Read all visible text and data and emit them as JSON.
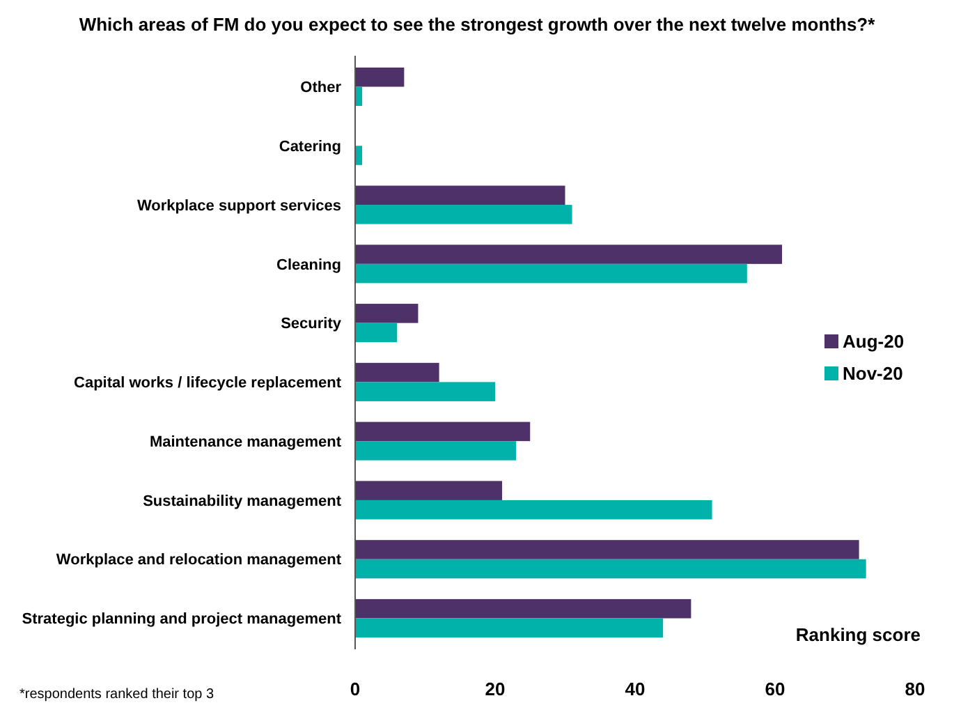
{
  "chart_data": {
    "type": "bar",
    "orientation": "horizontal",
    "title": "Which areas of FM do you expect to see the strongest growth over the next twelve months?*",
    "xlabel": "Ranking score",
    "categories": [
      "Other",
      "Catering",
      "Workplace support services",
      "Cleaning",
      "Security",
      "Capital works / lifecycle replacement",
      "Maintenance management",
      "Sustainability management",
      "Workplace and relocation management",
      "Strategic planning and project management"
    ],
    "series": [
      {
        "name": "Aug-20",
        "color": "#4e3169",
        "values": [
          7,
          0,
          30,
          61,
          9,
          12,
          25,
          21,
          72,
          48
        ]
      },
      {
        "name": "Nov-20",
        "color": "#00b2a9",
        "values": [
          1,
          1,
          31,
          56,
          6,
          20,
          23,
          51,
          73,
          44
        ]
      }
    ],
    "xlim": [
      0,
      80
    ],
    "xticks": [
      0,
      20,
      40,
      60,
      80
    ],
    "legend": "right",
    "grid": false,
    "annotations": [
      "*respondents ranked their top 3"
    ]
  }
}
